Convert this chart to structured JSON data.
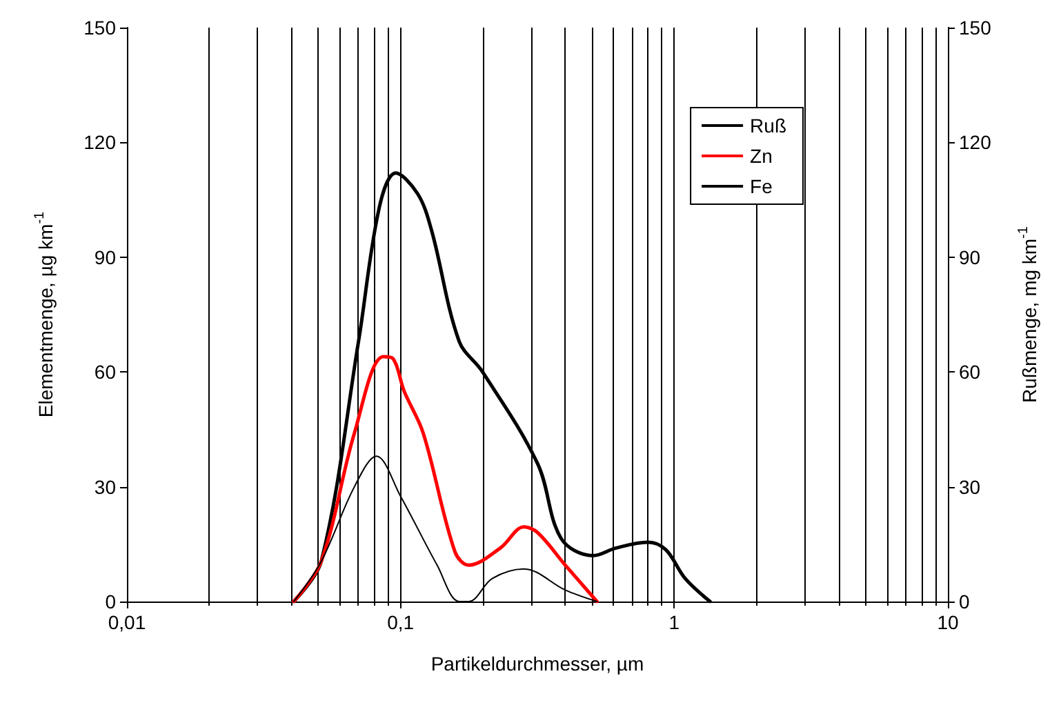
{
  "chart_data": {
    "type": "line",
    "xlabel": "Partikeldurchmesser, µm",
    "ylabel": "Elementmenge, µg km$^{-1}$",
    "y2label": "Rußmenge, mg km$^{-1}$",
    "log": "x",
    "xlim": [
      0.01,
      10
    ],
    "xticks": [
      {
        "value": 0.01,
        "label": "0,01"
      },
      {
        "value": 0.1,
        "label": "0,1"
      },
      1,
      10
    ],
    "ylim": [
      0,
      150
    ],
    "yticks": [
      0,
      30,
      60,
      90,
      120,
      150
    ],
    "y2lim": [
      0,
      150
    ],
    "y2ticks": [
      0,
      30,
      60,
      90,
      120,
      150
    ],
    "grid": "x",
    "legend": "top right",
    "marker": "none",
    "line_style": "solid",
    "series": [
      {
        "name": "Ruß",
        "color": "#000000",
        "axis": "y2",
        "x": [
          0.0407,
          0.0513,
          0.0702,
          0.0836,
          0.096,
          0.1156,
          0.1298,
          0.1637,
          0.1994,
          0.317,
          0.386,
          0.505,
          0.614,
          0.802,
          0.933,
          1.097,
          1.352
        ],
        "values": [
          0,
          10.5,
          68,
          103,
          112,
          106.5,
          97,
          68,
          60,
          36,
          16.5,
          12,
          14,
          15.5,
          13.5,
          6,
          0
        ]
      },
      {
        "name": "Zn",
        "color": "#ff0000",
        "x": [
          0.0407,
          0.0513,
          0.0678,
          0.0865,
          0.0938,
          0.103,
          0.121,
          0.158,
          0.1776,
          0.2317,
          0.2825,
          0.317,
          0.4,
          0.522
        ],
        "values": [
          0,
          10.5,
          44,
          64,
          63.5,
          55,
          44,
          13,
          9.5,
          14,
          19.5,
          18,
          9.5,
          0
        ]
      },
      {
        "name": "Fe",
        "color": "#000000",
        "x": [
          0.0407,
          0.0513,
          0.0678,
          0.0816,
          0.1,
          0.136,
          0.1637,
          0.1776,
          0.2163,
          0.2825,
          0.4,
          0.522
        ],
        "values": [
          0,
          10.5,
          30,
          38,
          27.5,
          9.5,
          0,
          0,
          6,
          8.5,
          3,
          0
        ]
      }
    ]
  }
}
